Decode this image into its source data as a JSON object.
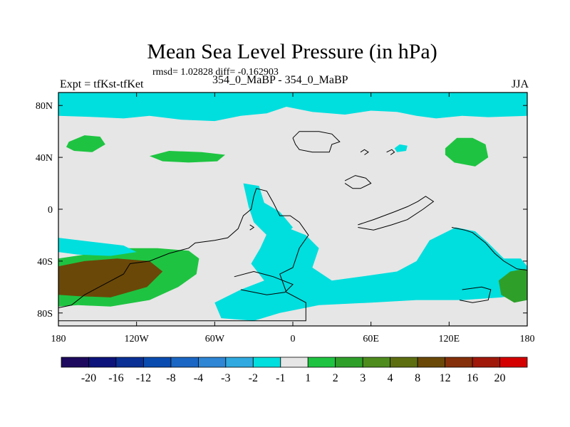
{
  "chart_data": {
    "type": "heatmap",
    "title": "Mean Sea Level Pressure (in hPa)",
    "stats_line": "rmsd= 1.02828 diff= -0.162903",
    "left_label": "Expt = tfKst-tfKet",
    "center_label": "354_0_MaBP - 354_0_MaBP",
    "right_label": "JJA",
    "x_ticks": [
      "180",
      "120W",
      "60W",
      "0",
      "60E",
      "120E",
      "180"
    ],
    "x_tick_values": [
      -180,
      -120,
      -60,
      0,
      60,
      120,
      180
    ],
    "y_ticks": [
      "80N",
      "40N",
      "0",
      "40S",
      "80S"
    ],
    "y_tick_values": [
      80,
      40,
      0,
      -40,
      -80
    ],
    "xlim": [
      -180,
      180
    ],
    "ylim": [
      -90,
      90
    ],
    "colorbar": {
      "levels": [
        "-20",
        "-16",
        "-12",
        "-8",
        "-4",
        "-3",
        "-2",
        "-1",
        "1",
        "2",
        "3",
        "4",
        "8",
        "12",
        "16",
        "20"
      ],
      "colors": [
        "#1d0a5e",
        "#0c137a",
        "#0a2f95",
        "#0a4bb0",
        "#1a66c4",
        "#2e86d4",
        "#2fa9df",
        "#00dede",
        "#e6e6e6",
        "#1ec441",
        "#2ea02a",
        "#4e8c1e",
        "#5c6e10",
        "#6a4808",
        "#85300a",
        "#a0180a",
        "#d40000"
      ]
    },
    "regions": [
      {
        "name": "arctic-negative",
        "level": "-2 to -1",
        "polygon": [
          [
            -180,
            90
          ],
          [
            180,
            90
          ],
          [
            180,
            72
          ],
          [
            150,
            71
          ],
          [
            130,
            72
          ],
          [
            110,
            70
          ],
          [
            95,
            72
          ],
          [
            80,
            75
          ],
          [
            60,
            76
          ],
          [
            40,
            73
          ],
          [
            15,
            75
          ],
          [
            -5,
            79
          ],
          [
            -20,
            74
          ],
          [
            -40,
            72
          ],
          [
            -60,
            68
          ],
          [
            -85,
            69
          ],
          [
            -110,
            72
          ],
          [
            -130,
            70
          ],
          [
            -150,
            71
          ],
          [
            -180,
            72
          ]
        ]
      },
      {
        "name": "north-pacific-positive",
        "level": "1 to 2",
        "polygon": [
          [
            -172,
            52
          ],
          [
            -160,
            57
          ],
          [
            -148,
            56
          ],
          [
            -144,
            50
          ],
          [
            -154,
            44
          ],
          [
            -168,
            45
          ],
          [
            -174,
            48
          ]
        ]
      },
      {
        "name": "north-atlantic-positive",
        "level": "1 to 2",
        "polygon": [
          [
            -110,
            41
          ],
          [
            -95,
            45
          ],
          [
            -70,
            44
          ],
          [
            -52,
            42
          ],
          [
            -58,
            37
          ],
          [
            -80,
            36
          ],
          [
            -100,
            37
          ]
        ]
      },
      {
        "name": "east-asia-positive",
        "level": "1 to 2",
        "polygon": [
          [
            117,
            47
          ],
          [
            126,
            55
          ],
          [
            138,
            55
          ],
          [
            148,
            50
          ],
          [
            150,
            40
          ],
          [
            140,
            33
          ],
          [
            124,
            36
          ],
          [
            117,
            42
          ]
        ]
      },
      {
        "name": "siberia-negative",
        "level": "-2 to -1",
        "polygon": [
          [
            78,
            47
          ],
          [
            82,
            50
          ],
          [
            88,
            49
          ],
          [
            87,
            45
          ],
          [
            80,
            44
          ]
        ]
      },
      {
        "name": "south-pacific-high",
        "level": "1 to 2",
        "polygon": [
          [
            -180,
            -38
          ],
          [
            -160,
            -35
          ],
          [
            -130,
            -30
          ],
          [
            -104,
            -30
          ],
          [
            -80,
            -32
          ],
          [
            -72,
            -38
          ],
          [
            -74,
            -50
          ],
          [
            -88,
            -60
          ],
          [
            -110,
            -70
          ],
          [
            -140,
            -75
          ],
          [
            -165,
            -74
          ],
          [
            -180,
            -75
          ]
        ]
      },
      {
        "name": "south-pacific-high-core",
        "level": "4 to 8",
        "polygon": [
          [
            -180,
            -44
          ],
          [
            -160,
            -40
          ],
          [
            -135,
            -38
          ],
          [
            -110,
            -40
          ],
          [
            -100,
            -48
          ],
          [
            -112,
            -60
          ],
          [
            -140,
            -68
          ],
          [
            -165,
            -67
          ],
          [
            -180,
            -66
          ]
        ]
      },
      {
        "name": "southern-ocean-negative",
        "level": "-2 to -1",
        "polygon": [
          [
            -180,
            -22
          ],
          [
            -155,
            -25
          ],
          [
            -130,
            -28
          ],
          [
            -120,
            -33
          ],
          [
            -140,
            -36
          ],
          [
            -165,
            -35
          ],
          [
            -180,
            -33
          ]
        ]
      },
      {
        "name": "south-atlantic-negative",
        "level": "-2 to -1",
        "polygon": [
          [
            -15,
            -8
          ],
          [
            -5,
            -14
          ],
          [
            10,
            -20
          ],
          [
            20,
            -30
          ],
          [
            15,
            -45
          ],
          [
            30,
            -55
          ],
          [
            52,
            -52
          ],
          [
            80,
            -48
          ],
          [
            95,
            -40
          ],
          [
            105,
            -24
          ],
          [
            125,
            -14
          ],
          [
            140,
            -17
          ],
          [
            150,
            -26
          ],
          [
            162,
            -38
          ],
          [
            175,
            -38
          ],
          [
            180,
            -44
          ],
          [
            180,
            -65
          ],
          [
            160,
            -68
          ],
          [
            130,
            -70
          ],
          [
            95,
            -70
          ],
          [
            60,
            -72
          ],
          [
            20,
            -74
          ],
          [
            -10,
            -80
          ],
          [
            -30,
            -86
          ],
          [
            -55,
            -84
          ],
          [
            -60,
            -72
          ],
          [
            -40,
            -62
          ],
          [
            -22,
            -55
          ],
          [
            -32,
            -42
          ],
          [
            -25,
            -30
          ]
        ]
      },
      {
        "name": "amazon-negative",
        "level": "-2 to -1",
        "polygon": [
          [
            -38,
            20
          ],
          [
            -26,
            18
          ],
          [
            -22,
            5
          ],
          [
            -10,
            -2
          ],
          [
            0,
            -14
          ],
          [
            -8,
            -22
          ],
          [
            -20,
            -20
          ],
          [
            -30,
            -10
          ],
          [
            -34,
            2
          ]
        ]
      },
      {
        "name": "east-pacific-positive-tip",
        "level": "2 to 4",
        "polygon": [
          [
            158,
            -55
          ],
          [
            167,
            -48
          ],
          [
            178,
            -46
          ],
          [
            180,
            -47
          ],
          [
            180,
            -70
          ],
          [
            170,
            -72
          ],
          [
            160,
            -66
          ]
        ]
      }
    ],
    "coastlines": "paleogeographic (354 MaBP) outlines"
  }
}
